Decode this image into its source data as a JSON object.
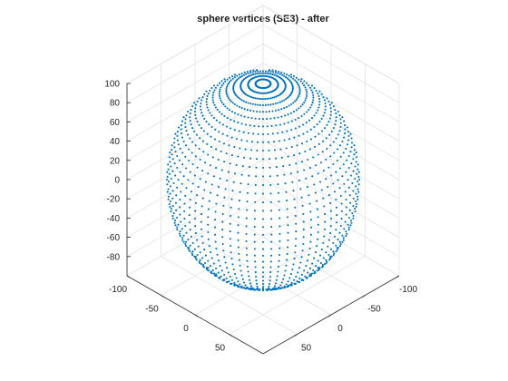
{
  "chart_data": {
    "type": "scatter",
    "title": "sphere vertices (SE3) - after",
    "xlabel": "",
    "ylabel": "",
    "zlabel": "",
    "x_ticks": [
      -100,
      -50,
      0,
      50
    ],
    "y_ticks": [
      -100,
      -50,
      0,
      50
    ],
    "z_ticks": [
      -80,
      -60,
      -40,
      -20,
      0,
      20,
      40,
      60,
      80,
      100
    ],
    "xlim": [
      -100,
      100
    ],
    "ylim": [
      -100,
      100
    ],
    "zlim": [
      -100,
      100
    ],
    "grid": true,
    "marker_color": "#0072bd",
    "series": [
      {
        "shape": "sphere",
        "center": [
          0,
          0,
          0
        ],
        "radius": 100,
        "latitude_rings": 40,
        "longitude_steps": 72
      }
    ]
  }
}
